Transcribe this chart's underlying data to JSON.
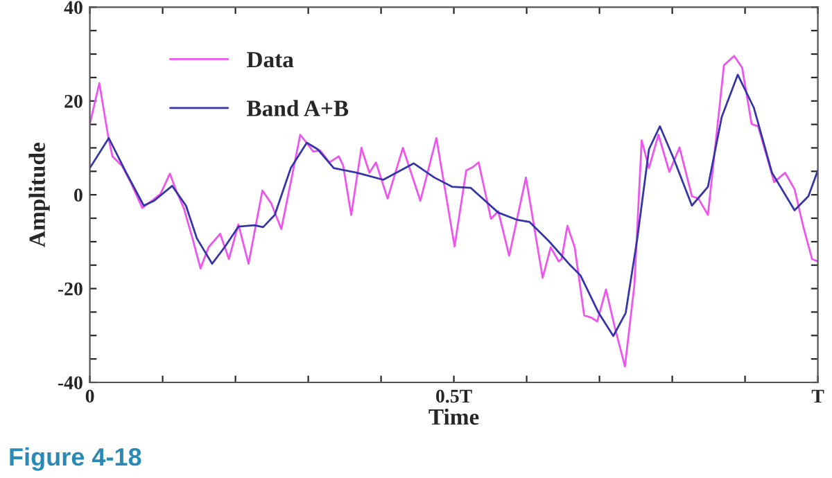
{
  "chart_data": {
    "type": "line",
    "xlabel": "Time",
    "ylabel": "Amplitude",
    "xlim": [
      0,
      1
    ],
    "ylim": [
      -40,
      40
    ],
    "xticks": [
      0,
      {
        "value": 0.1,
        "label": null
      },
      {
        "value": 0.2,
        "label": null
      },
      {
        "value": 0.3,
        "label": null
      },
      {
        "value": 0.4,
        "label": null
      },
      {
        "value": 0.5,
        "label": "0.5T"
      },
      {
        "value": 0.6,
        "label": null
      },
      {
        "value": 0.7,
        "label": null
      },
      {
        "value": 0.8,
        "label": null
      },
      {
        "value": 0.9,
        "label": null
      },
      {
        "value": 1,
        "label": "T"
      }
    ],
    "yticks": [
      -40,
      {
        "value": -35,
        "label": null
      },
      {
        "value": -30,
        "label": null
      },
      {
        "value": -25,
        "label": null
      },
      -20,
      {
        "value": -15,
        "label": null
      },
      {
        "value": -10,
        "label": null
      },
      {
        "value": -5,
        "label": null
      },
      0,
      {
        "value": 5,
        "label": null
      },
      {
        "value": 10,
        "label": null
      },
      {
        "value": 15,
        "label": null
      },
      20,
      {
        "value": 25,
        "label": null
      },
      {
        "value": 30,
        "label": null
      },
      {
        "value": 35,
        "label": null
      },
      40
    ],
    "grid": false,
    "legend": "top left",
    "marker": "none",
    "line_style": "solid",
    "annotations": [
      "Figure 4-18"
    ],
    "series": [
      {
        "name": "Data",
        "color": "#ee55ee",
        "x": [
          0,
          0.013,
          0.025,
          0.031,
          0.044,
          0.056,
          0.072,
          0.085,
          0.097,
          0.11,
          0.119,
          0.129,
          0.141,
          0.152,
          0.163,
          0.179,
          0.191,
          0.204,
          0.218,
          0.237,
          0.249,
          0.263,
          0.276,
          0.289,
          0.307,
          0.316,
          0.329,
          0.342,
          0.348,
          0.359,
          0.373,
          0.384,
          0.393,
          0.409,
          0.43,
          0.454,
          0.476,
          0.501,
          0.517,
          0.526,
          0.534,
          0.551,
          0.561,
          0.576,
          0.599,
          0.622,
          0.633,
          0.644,
          0.648,
          0.656,
          0.666,
          0.679,
          0.689,
          0.697,
          0.709,
          0.721,
          0.735,
          0.748,
          0.758,
          0.768,
          0.781,
          0.796,
          0.81,
          0.827,
          0.836,
          0.849,
          0.871,
          0.885,
          0.896,
          0.909,
          0.918,
          0.94,
          0.955,
          0.968,
          0.98,
          0.992,
          1
        ],
        "values": [
          15.1,
          23.8,
          12.6,
          8.2,
          6.2,
          2.7,
          -2.8,
          -1.3,
          0.2,
          4.5,
          0.7,
          -2.8,
          -9.3,
          -15.7,
          -11.2,
          -8.3,
          -13.7,
          -6.3,
          -14.7,
          0.9,
          -1.8,
          -7.3,
          2.7,
          12.8,
          9.2,
          9.5,
          6.9,
          8.2,
          6.2,
          -4.3,
          10.0,
          4.7,
          6.9,
          -0.8,
          10.0,
          -1.3,
          12.1,
          -11.0,
          5.2,
          5.9,
          6.9,
          -5.1,
          -3.5,
          -13.0,
          3.7,
          -17.7,
          -11.2,
          -14.2,
          -13.7,
          -6.6,
          -11.2,
          -25.7,
          -26.2,
          -27.0,
          -20.2,
          -28.2,
          -36.6,
          -19.2,
          11.6,
          5.7,
          12.8,
          4.9,
          10.1,
          -0.3,
          -0.8,
          -4.3,
          27.6,
          29.6,
          27.1,
          15.1,
          14.6,
          2.7,
          4.7,
          1.2,
          -6.8,
          -13.7,
          -14.2
        ]
      },
      {
        "name": "Band A+B",
        "color": "#3535a8",
        "x": [
          0,
          0.026,
          0.05,
          0.074,
          0.088,
          0.113,
          0.132,
          0.147,
          0.168,
          0.185,
          0.204,
          0.226,
          0.238,
          0.254,
          0.276,
          0.298,
          0.313,
          0.335,
          0.367,
          0.403,
          0.445,
          0.473,
          0.498,
          0.523,
          0.561,
          0.586,
          0.604,
          0.63,
          0.658,
          0.674,
          0.699,
          0.719,
          0.736,
          0.752,
          0.768,
          0.783,
          0.802,
          0.827,
          0.849,
          0.868,
          0.89,
          0.912,
          0.937,
          0.968,
          0.987,
          1
        ],
        "values": [
          5.7,
          12.1,
          4.7,
          -2.3,
          -1.3,
          1.9,
          -2.3,
          -9.3,
          -14.7,
          -11.2,
          -6.8,
          -6.5,
          -6.9,
          -4.3,
          5.7,
          11.1,
          9.7,
          5.7,
          4.7,
          3.2,
          6.7,
          3.7,
          1.7,
          1.5,
          -3.8,
          -5.3,
          -5.8,
          -9.8,
          -14.7,
          -17.2,
          -25.2,
          -30.1,
          -25.2,
          -9.3,
          9.7,
          14.6,
          7.7,
          -2.3,
          1.7,
          16.6,
          25.6,
          18.6,
          4.7,
          -3.3,
          -0.3,
          5.2
        ]
      }
    ]
  }
}
